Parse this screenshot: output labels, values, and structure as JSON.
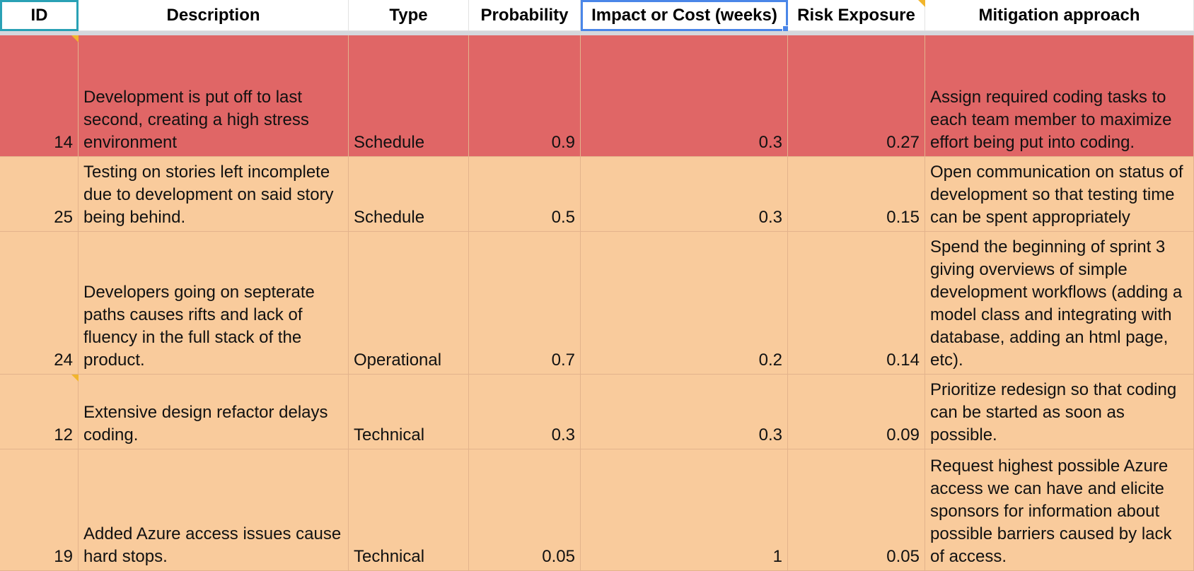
{
  "headers": {
    "id": "ID",
    "description": "Description",
    "type": "Type",
    "probability": "Probability",
    "impact": "Impact or Cost (weeks)",
    "exposure": "Risk Exposure",
    "mitigation": "Mitigation approach"
  },
  "colors": {
    "high_risk_fill": "#e06666",
    "medium_risk_fill": "#f9cb9c",
    "selection_border": "#4a86e8",
    "id_header_border": "#2aa1b5",
    "comment_marker": "#f1b52c"
  },
  "rows": [
    {
      "id": "14",
      "description": "Development is put off to last second, creating a high stress environment",
      "type": "Schedule",
      "probability": "0.9",
      "impact": "0.3",
      "exposure": "0.27",
      "mitigation": "Assign required coding tasks to each team member to maximize effort being put into coding."
    },
    {
      "id": "25",
      "description": "Testing on stories left incomplete due to development on said story being behind.",
      "type": "Schedule",
      "probability": "0.5",
      "impact": "0.3",
      "exposure": "0.15",
      "mitigation": "Open communication on status of development so that testing time can be spent appropriately"
    },
    {
      "id": "24",
      "description": "Developers going on septerate paths causes rifts and lack of fluency in the full stack of the product.",
      "type": "Operational",
      "probability": "0.7",
      "impact": "0.2",
      "exposure": "0.14",
      "mitigation": "Spend the beginning of sprint 3 giving overviews of simple development workflows (adding a model class and integrating with database, adding an html page, etc)."
    },
    {
      "id": "12",
      "description": "Extensive design refactor delays coding.",
      "type": "Technical",
      "probability": "0.3",
      "impact": "0.3",
      "exposure": "0.09",
      "mitigation": "Prioritize redesign so that coding can be started as soon as possible."
    },
    {
      "id": "19",
      "description": "Added Azure access issues cause hard stops.",
      "type": "Technical",
      "probability": "0.05",
      "impact": "1",
      "exposure": "0.05",
      "mitigation": "Request highest possible Azure access we can have and elicite sponsors for information about possible barriers caused by lack of access."
    }
  ]
}
